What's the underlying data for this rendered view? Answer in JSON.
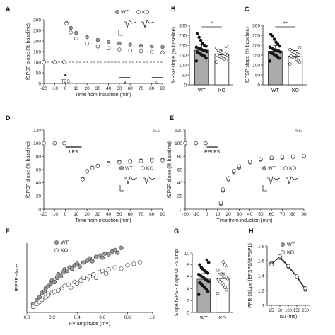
{
  "chart_data": [
    {
      "panel": "A",
      "type": "scatter",
      "xlabel": "Time from induction (min)",
      "ylabel": "fEPSP slope (% baseline)",
      "xlim": [
        -20,
        90
      ],
      "ylim": [
        0,
        300
      ],
      "xticks": [
        -20,
        -10,
        0,
        10,
        20,
        30,
        40,
        50,
        60,
        70,
        80,
        90
      ],
      "yticks": [
        0,
        50,
        100,
        150,
        200,
        250,
        300
      ],
      "baseline": 100,
      "annotations": [
        "TBS",
        "B",
        "C"
      ],
      "legend": [
        "WT",
        "KO"
      ],
      "legend_position": "top-right",
      "series": [
        {
          "name": "WT",
          "fill": "grey",
          "x": [
            -20,
            -10,
            -1,
            1,
            5,
            10,
            20,
            30,
            40,
            50,
            60,
            70,
            80,
            90
          ],
          "y": [
            100,
            100,
            100,
            285,
            262,
            238,
            218,
            205,
            196,
            189,
            183,
            178,
            175,
            172
          ]
        },
        {
          "name": "KO",
          "fill": "white",
          "x": [
            -20,
            -10,
            -1,
            1,
            5,
            10,
            20,
            30,
            40,
            50,
            60,
            70,
            80,
            90
          ],
          "y": [
            100,
            100,
            100,
            282,
            240,
            212,
            188,
            174,
            166,
            160,
            155,
            151,
            148,
            146
          ]
        }
      ]
    },
    {
      "panel": "B",
      "type": "bar",
      "ylabel": "fEPSP slope (% baseline)",
      "ylim": [
        0,
        300
      ],
      "yticks": [
        0,
        50,
        100,
        150,
        200,
        250,
        300
      ],
      "categories": [
        "WT",
        "KO"
      ],
      "values": [
        175,
        152
      ],
      "significance": "*",
      "points": [
        [
          120,
          135,
          145,
          150,
          155,
          160,
          165,
          168,
          172,
          175,
          178,
          182,
          185,
          190,
          195,
          200,
          210,
          225,
          240,
          260
        ],
        [
          115,
          125,
          130,
          135,
          140,
          145,
          150,
          152,
          155,
          160,
          165,
          170,
          175,
          185,
          195
        ]
      ]
    },
    {
      "panel": "C",
      "type": "bar",
      "ylabel": "fEPSP slope (% baseline)",
      "ylim": [
        0,
        300
      ],
      "yticks": [
        0,
        50,
        100,
        150,
        200,
        250,
        300
      ],
      "categories": [
        "WT",
        "KO"
      ],
      "values": [
        170,
        145
      ],
      "significance": "**",
      "points": [
        [
          120,
          135,
          140,
          148,
          152,
          158,
          162,
          166,
          170,
          172,
          176,
          180,
          184,
          190,
          196,
          205,
          215,
          230,
          245,
          255
        ],
        [
          105,
          115,
          122,
          130,
          136,
          140,
          145,
          148,
          152,
          156,
          160,
          165,
          170,
          178,
          188
        ]
      ]
    },
    {
      "panel": "D",
      "type": "scatter",
      "xlabel": "Time from induction (min)",
      "ylabel": "fEPSP slope (% baseline)",
      "xlim": [
        -20,
        90
      ],
      "ylim": [
        0,
        120
      ],
      "xticks": [
        -20,
        -10,
        0,
        10,
        20,
        30,
        40,
        50,
        60,
        70,
        80,
        90
      ],
      "yticks": [
        0,
        20,
        40,
        60,
        80,
        100,
        120
      ],
      "baseline": 100,
      "annotations": [
        "LFS",
        "n.s."
      ],
      "legend": [
        "WT",
        "KO"
      ],
      "legend_position": "right",
      "series": [
        {
          "name": "WT",
          "fill": "grey",
          "x": [
            -20,
            -10,
            -1,
            16,
            20,
            25,
            30,
            40,
            50,
            60,
            70,
            80,
            90
          ],
          "y": [
            100,
            100,
            100,
            46,
            58,
            63,
            66,
            70,
            72,
            73,
            74,
            75,
            75
          ]
        },
        {
          "name": "KO",
          "fill": "white",
          "x": [
            -20,
            -10,
            -1,
            16,
            20,
            25,
            30,
            40,
            50,
            60,
            70,
            80,
            90
          ],
          "y": [
            100,
            100,
            100,
            45,
            57,
            62,
            65,
            69,
            71,
            72,
            73,
            74,
            74
          ]
        }
      ]
    },
    {
      "panel": "E",
      "type": "scatter",
      "xlabel": "Time from induction (min)",
      "ylabel": "fEPSP slope (% baseline)",
      "xlim": [
        -20,
        90
      ],
      "ylim": [
        0,
        120
      ],
      "xticks": [
        -20,
        -10,
        0,
        10,
        20,
        30,
        40,
        50,
        60,
        70,
        80,
        90
      ],
      "yticks": [
        0,
        20,
        40,
        60,
        80,
        100,
        120
      ],
      "baseline": 100,
      "annotations": [
        "PPLFS",
        "n.s."
      ],
      "legend": [
        "WT",
        "KO"
      ],
      "legend_position": "right",
      "series": [
        {
          "name": "WT",
          "fill": "grey",
          "x": [
            -20,
            -10,
            -1,
            13,
            15,
            20,
            25,
            30,
            40,
            50,
            60,
            70,
            80,
            90
          ],
          "y": [
            100,
            100,
            100,
            8,
            28,
            45,
            56,
            63,
            71,
            75,
            77,
            78,
            79,
            80
          ]
        },
        {
          "name": "KO",
          "fill": "white",
          "x": [
            -20,
            -10,
            -1,
            13,
            15,
            20,
            25,
            30,
            40,
            50,
            60,
            70,
            80,
            90
          ],
          "y": [
            100,
            100,
            100,
            10,
            30,
            47,
            58,
            65,
            72,
            76,
            78,
            79,
            80,
            81
          ]
        }
      ]
    },
    {
      "panel": "F",
      "type": "scatter",
      "xlabel": "FV amplitude (mV)",
      "ylabel": "fEPSP slope",
      "xlim": [
        0,
        1.0
      ],
      "ylim": [
        0,
        1.0
      ],
      "xticks": [
        0.0,
        0.2,
        0.4,
        0.6,
        0.8,
        1.0
      ],
      "legend": [
        "WT",
        "KO"
      ],
      "legend_position": "top-left",
      "series": [
        {
          "name": "WT",
          "fill": "grey",
          "x": [
            0.05,
            0.08,
            0.1,
            0.12,
            0.14,
            0.15,
            0.17,
            0.19,
            0.2,
            0.22,
            0.24,
            0.25,
            0.27,
            0.29,
            0.3,
            0.32,
            0.34,
            0.36,
            0.38,
            0.4,
            0.42,
            0.45,
            0.48,
            0.5,
            0.52,
            0.55,
            0.58,
            0.6,
            0.62,
            0.65,
            0.68,
            0.7,
            0.72,
            0.75
          ],
          "y": [
            0.12,
            0.18,
            0.22,
            0.28,
            0.3,
            0.35,
            0.38,
            0.42,
            0.46,
            0.44,
            0.5,
            0.55,
            0.52,
            0.58,
            0.62,
            0.6,
            0.65,
            0.63,
            0.68,
            0.7,
            0.66,
            0.72,
            0.75,
            0.78,
            0.74,
            0.8,
            0.82,
            0.79,
            0.85,
            0.84,
            0.88,
            0.9,
            0.86,
            0.93
          ]
        },
        {
          "name": "KO",
          "fill": "white",
          "x": [
            0.05,
            0.08,
            0.1,
            0.12,
            0.15,
            0.17,
            0.2,
            0.22,
            0.25,
            0.28,
            0.3,
            0.33,
            0.35,
            0.38,
            0.4,
            0.43,
            0.45,
            0.48,
            0.5,
            0.53,
            0.55,
            0.58,
            0.6,
            0.63,
            0.65,
            0.7,
            0.75,
            0.8,
            0.85,
            0.9
          ],
          "y": [
            0.08,
            0.12,
            0.15,
            0.18,
            0.22,
            0.25,
            0.28,
            0.3,
            0.32,
            0.35,
            0.38,
            0.4,
            0.36,
            0.44,
            0.42,
            0.46,
            0.5,
            0.48,
            0.52,
            0.55,
            0.5,
            0.58,
            0.6,
            0.56,
            0.62,
            0.65,
            0.63,
            0.68,
            0.7,
            0.72
          ]
        }
      ]
    },
    {
      "panel": "G",
      "type": "bar",
      "ylabel": "Slope fEPSP slope vs FV amp",
      "ylim": [
        0,
        10
      ],
      "yticks": [
        0,
        2,
        4,
        6,
        8,
        10
      ],
      "categories": [
        "WT",
        "KO"
      ],
      "values": [
        5.6,
        5.7
      ],
      "points": [
        [
          3.0,
          3.5,
          3.9,
          4.2,
          4.5,
          4.8,
          5.0,
          5.2,
          5.4,
          5.6,
          5.8,
          6.0,
          6.2,
          6.4,
          6.6,
          6.8,
          7.0,
          7.3,
          7.6,
          8.0,
          8.4,
          8.8
        ],
        [
          3.2,
          3.8,
          4.2,
          4.6,
          4.9,
          5.2,
          5.5,
          5.7,
          5.9,
          6.1,
          6.3,
          6.5,
          6.8,
          7.1,
          7.5,
          8.0,
          8.5
        ]
      ]
    },
    {
      "panel": "H",
      "type": "line",
      "xlabel": "ISI (ms)",
      "ylabel": "PPR (Slope fEPSP2/fEPSP1)",
      "categories": [
        "25",
        "50",
        "100",
        "150",
        "250"
      ],
      "ylim": [
        1.0,
        1.8
      ],
      "yticks": [
        1.0,
        1.2,
        1.4,
        1.6,
        1.8
      ],
      "legend": [
        "WT",
        "KO"
      ],
      "legend_position": "top-right",
      "series": [
        {
          "name": "WT",
          "fill": "grey",
          "values": [
            1.57,
            1.64,
            1.52,
            1.38,
            1.21
          ]
        },
        {
          "name": "KO",
          "fill": "white",
          "values": [
            1.55,
            1.66,
            1.53,
            1.39,
            1.23
          ]
        }
      ]
    }
  ]
}
